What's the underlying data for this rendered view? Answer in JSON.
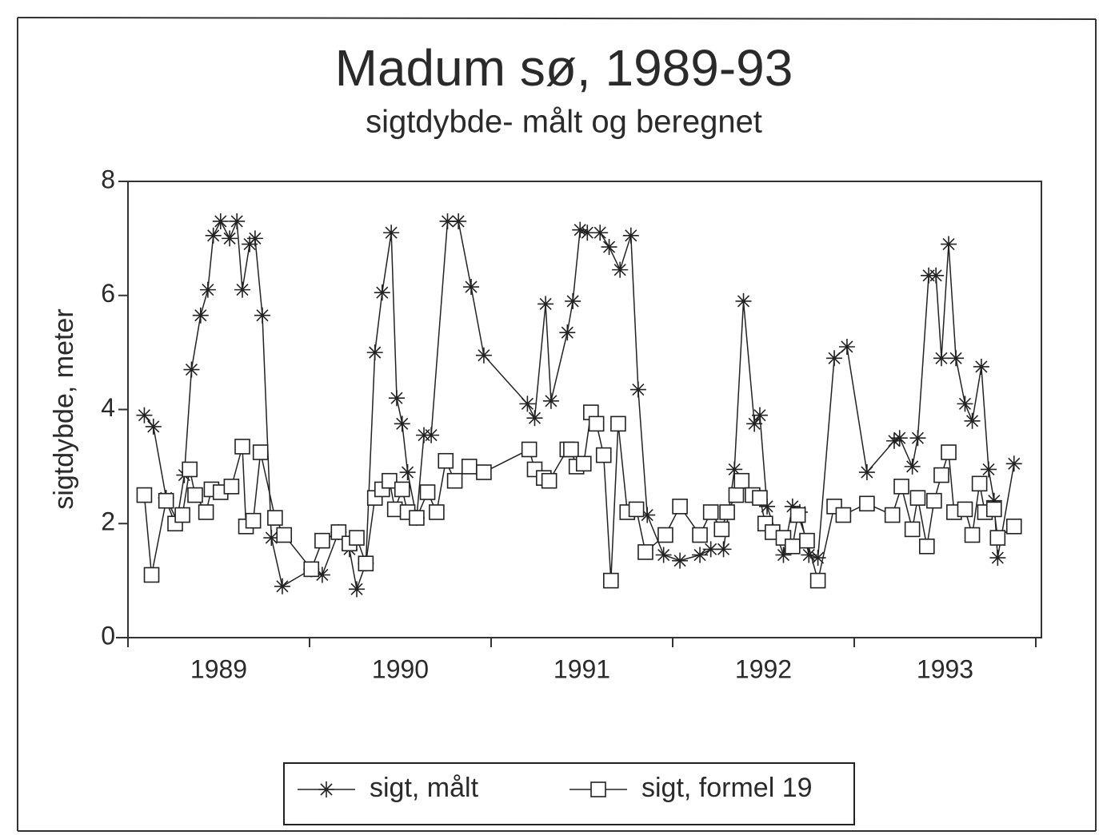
{
  "chart_data": {
    "type": "line",
    "title": "Madum sø, 1989-93",
    "subtitle": "sigtdybde- målt og beregnet",
    "y_label": "sigtdybde, meter",
    "xlim": [
      1989,
      1994
    ],
    "xtick_marks": [
      1989,
      1990,
      1991,
      1992,
      1993,
      1994
    ],
    "xticks": [
      {
        "value": 1989.5,
        "label": "1989"
      },
      {
        "value": 1990.5,
        "label": "1990"
      },
      {
        "value": 1991.5,
        "label": "1991"
      },
      {
        "value": 1992.5,
        "label": "1992"
      },
      {
        "value": 1993.5,
        "label": "1993"
      }
    ],
    "ylim": [
      0,
      8
    ],
    "yticks": [
      0,
      2,
      4,
      6,
      8
    ],
    "legend": "bottom",
    "series": [
      {
        "name": "sigt, målt",
        "color": "#222222",
        "marker": "asterisk",
        "x": [
          1989.09,
          1989.14,
          1989.21,
          1989.27,
          1989.31,
          1989.35,
          1989.4,
          1989.44,
          1989.47,
          1989.51,
          1989.56,
          1989.6,
          1989.63,
          1989.67,
          1989.7,
          1989.74,
          1989.79,
          1989.85,
          1990.01,
          1990.07,
          1990.16,
          1990.22,
          1990.26,
          1990.31,
          1990.36,
          1990.4,
          1990.45,
          1990.48,
          1990.51,
          1990.54,
          1990.59,
          1990.63,
          1990.67,
          1990.76,
          1990.82,
          1990.89,
          1990.96,
          1991.2,
          1991.24,
          1991.3,
          1991.33,
          1991.42,
          1991.45,
          1991.49,
          1991.53,
          1991.6,
          1991.65,
          1991.71,
          1991.77,
          1991.81,
          1991.86,
          1991.95,
          1992.04,
          1992.15,
          1992.21,
          1992.28,
          1992.34,
          1992.39,
          1992.45,
          1992.48,
          1992.52,
          1992.61,
          1992.66,
          1992.7,
          1992.75,
          1992.8,
          1992.89,
          1992.96,
          1993.07,
          1993.22,
          1993.25,
          1993.32,
          1993.35,
          1993.41,
          1993.45,
          1993.48,
          1993.52,
          1993.56,
          1993.61,
          1993.65,
          1993.7,
          1993.74,
          1993.77,
          1993.79,
          1993.88
        ],
        "values": [
          3.9,
          3.7,
          2.45,
          2.05,
          2.85,
          4.7,
          5.65,
          6.1,
          7.05,
          7.3,
          7.0,
          7.3,
          6.1,
          6.9,
          7.0,
          5.65,
          1.75,
          0.9,
          1.2,
          1.1,
          1.85,
          1.55,
          0.85,
          1.3,
          5.0,
          6.05,
          7.1,
          4.2,
          3.75,
          2.9,
          2.1,
          3.55,
          3.55,
          7.3,
          7.3,
          6.15,
          4.95,
          4.1,
          3.85,
          5.85,
          4.15,
          5.35,
          5.9,
          7.15,
          7.1,
          7.1,
          6.85,
          6.45,
          7.05,
          4.35,
          2.15,
          1.45,
          1.35,
          1.45,
          1.55,
          1.55,
          2.95,
          5.9,
          3.75,
          3.9,
          2.3,
          1.45,
          2.3,
          2.2,
          1.45,
          1.4,
          4.9,
          5.1,
          2.9,
          3.45,
          3.5,
          3.0,
          3.5,
          6.35,
          6.35,
          4.9,
          6.9,
          4.9,
          4.1,
          3.8,
          4.75,
          2.95,
          2.4,
          1.4,
          3.05
        ]
      },
      {
        "name": "sigt, formel 19",
        "color": "#222222",
        "marker": "square",
        "x": [
          1989.09,
          1989.13,
          1989.21,
          1989.26,
          1989.3,
          1989.34,
          1989.37,
          1989.43,
          1989.46,
          1989.51,
          1989.57,
          1989.63,
          1989.65,
          1989.69,
          1989.73,
          1989.81,
          1989.86,
          1990.01,
          1990.07,
          1990.16,
          1990.22,
          1990.26,
          1990.31,
          1990.36,
          1990.4,
          1990.44,
          1990.47,
          1990.51,
          1990.54,
          1990.59,
          1990.65,
          1990.7,
          1990.75,
          1990.8,
          1990.88,
          1990.96,
          1991.21,
          1991.24,
          1991.29,
          1991.32,
          1991.42,
          1991.44,
          1991.47,
          1991.51,
          1991.55,
          1991.58,
          1991.62,
          1991.66,
          1991.7,
          1991.75,
          1991.8,
          1991.85,
          1991.96,
          1992.04,
          1992.15,
          1992.21,
          1992.27,
          1992.3,
          1992.35,
          1992.38,
          1992.44,
          1992.48,
          1992.51,
          1992.55,
          1992.61,
          1992.66,
          1992.69,
          1992.74,
          1992.8,
          1992.89,
          1992.94,
          1993.07,
          1993.21,
          1993.26,
          1993.32,
          1993.35,
          1993.4,
          1993.44,
          1993.48,
          1993.52,
          1993.55,
          1993.61,
          1993.65,
          1993.69,
          1993.72,
          1993.77,
          1993.79,
          1993.88
        ],
        "values": [
          2.5,
          1.1,
          2.4,
          2.0,
          2.15,
          2.95,
          2.5,
          2.2,
          2.6,
          2.55,
          2.65,
          3.35,
          1.95,
          2.05,
          3.25,
          2.1,
          1.8,
          1.2,
          1.7,
          1.85,
          1.65,
          1.75,
          1.3,
          2.45,
          2.6,
          2.75,
          2.25,
          2.6,
          2.2,
          2.1,
          2.55,
          2.2,
          3.1,
          2.75,
          3.0,
          2.9,
          3.3,
          2.95,
          2.8,
          2.75,
          3.3,
          3.3,
          3.0,
          3.05,
          3.95,
          3.75,
          3.2,
          1.0,
          3.75,
          2.2,
          2.25,
          1.5,
          1.8,
          2.3,
          1.8,
          2.2,
          1.9,
          2.2,
          2.5,
          2.75,
          2.5,
          2.45,
          2.0,
          1.85,
          1.75,
          1.6,
          2.15,
          1.7,
          1.0,
          2.3,
          2.15,
          2.35,
          2.15,
          2.65,
          1.9,
          2.45,
          1.6,
          2.4,
          2.85,
          3.25,
          2.2,
          2.25,
          1.8,
          2.7,
          2.2,
          2.25,
          1.75,
          1.95
        ]
      }
    ]
  }
}
